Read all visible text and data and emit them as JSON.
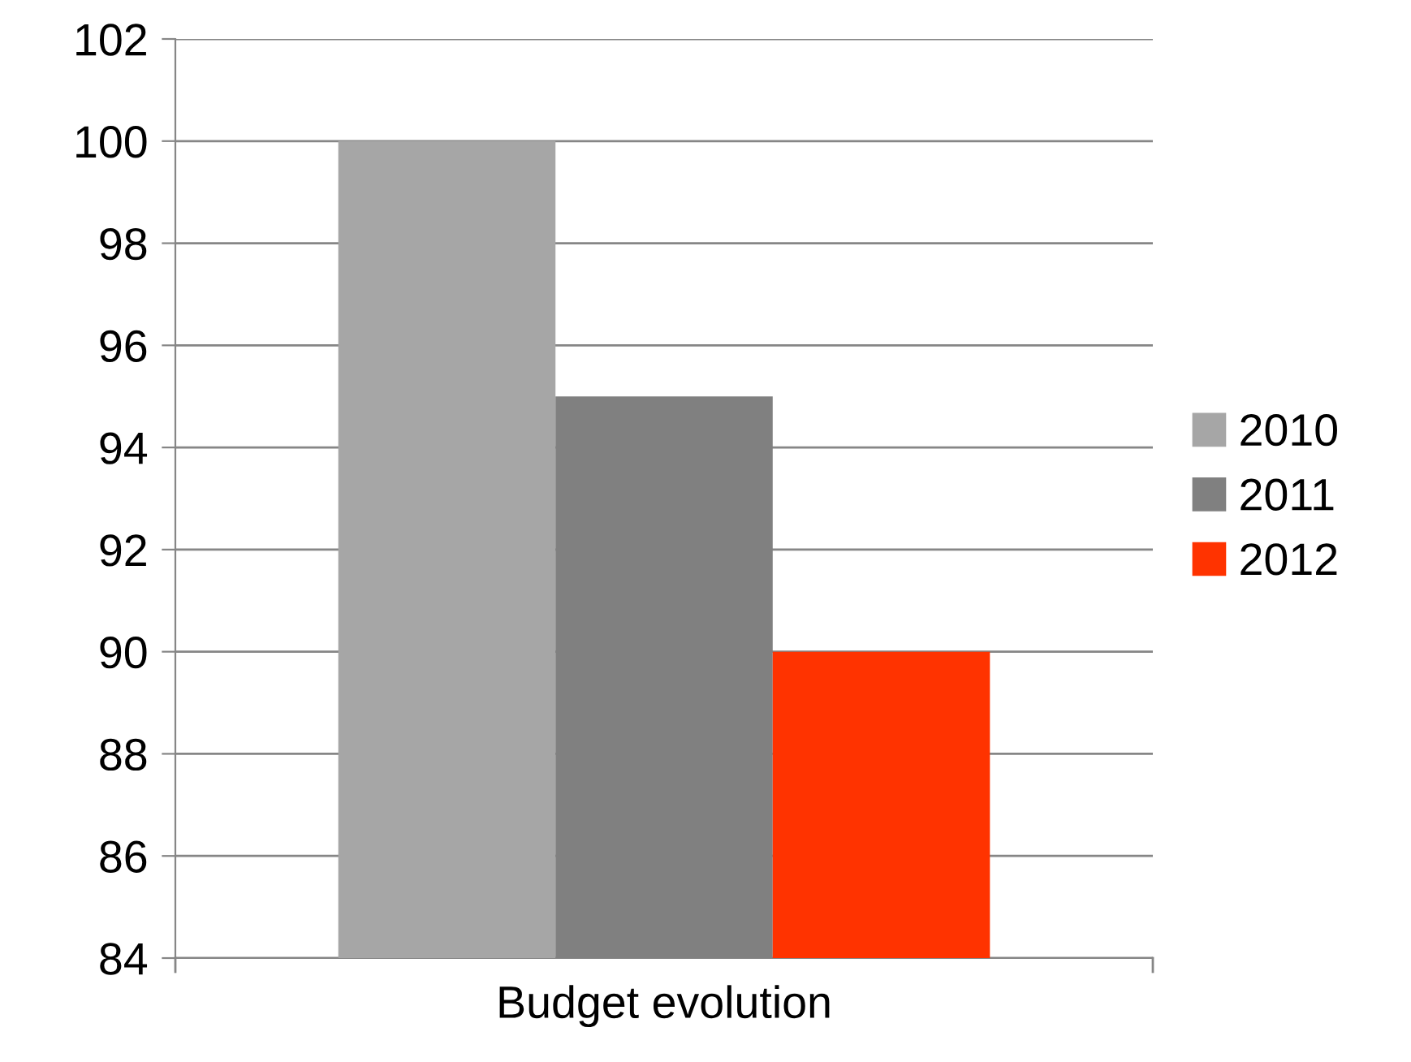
{
  "chart_data": {
    "type": "bar",
    "categories": [
      "Budget evolution"
    ],
    "series": [
      {
        "name": "2010",
        "color": "#a6a6a6",
        "values": [
          100
        ]
      },
      {
        "name": "2011",
        "color": "#808080",
        "values": [
          95
        ]
      },
      {
        "name": "2012",
        "color": "#ff3300",
        "values": [
          90
        ]
      }
    ],
    "ylim": [
      84,
      102
    ],
    "yticks": [
      84,
      86,
      88,
      90,
      92,
      94,
      96,
      98,
      100,
      102
    ],
    "grid": "y",
    "legend": "right"
  }
}
